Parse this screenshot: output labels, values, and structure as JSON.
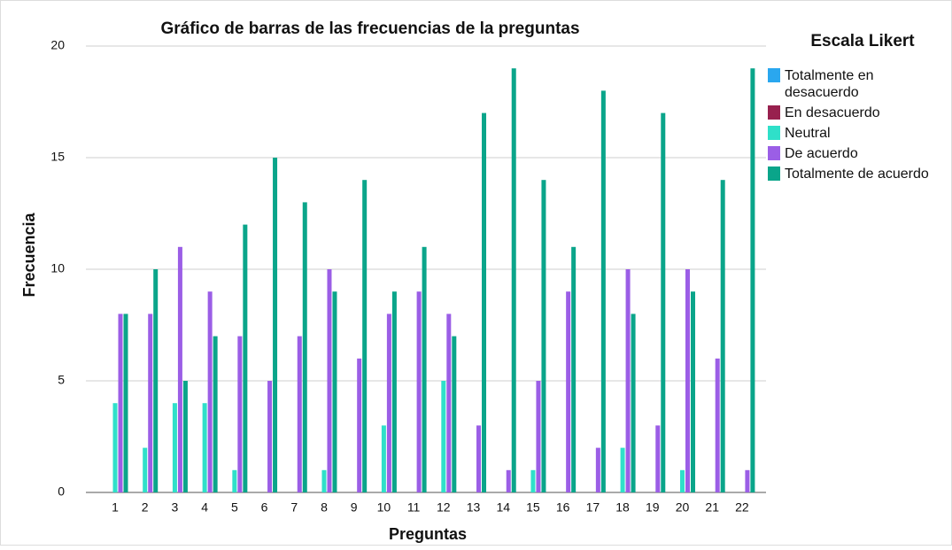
{
  "chart_data": {
    "type": "bar",
    "title": "Gráfico de barras de las frecuencias de la preguntas",
    "x_label": "Preguntas",
    "y_label": "Frecuencia",
    "legend_title": "Escala Likert",
    "legend": "right",
    "categories": [
      "1",
      "2",
      "3",
      "4",
      "5",
      "6",
      "7",
      "8",
      "9",
      "10",
      "11",
      "12",
      "13",
      "14",
      "15",
      "16",
      "17",
      "18",
      "19",
      "20",
      "21",
      "22"
    ],
    "series": [
      {
        "name": "Totalmente en desacuerdo",
        "color": "#2aa7ef",
        "values": [
          0,
          0,
          0,
          0,
          0,
          0,
          0,
          0,
          0,
          0,
          0,
          0,
          0,
          0,
          0,
          0,
          0,
          0,
          0,
          0,
          0,
          0
        ]
      },
      {
        "name": "En desacuerdo",
        "color": "#98204e",
        "values": [
          0,
          0,
          0,
          0,
          0,
          0,
          0,
          0,
          0,
          0,
          0,
          0,
          0,
          0,
          0,
          0,
          0,
          0,
          0,
          0,
          0,
          0
        ]
      },
      {
        "name": "Neutral",
        "color": "#2fe0c9",
        "values": [
          4,
          2,
          4,
          4,
          1,
          0,
          0,
          1,
          0,
          3,
          0,
          5,
          0,
          0,
          1,
          0,
          0,
          2,
          0,
          1,
          0,
          0
        ]
      },
      {
        "name": "De acuerdo",
        "color": "#9b5ee6",
        "values": [
          8,
          8,
          11,
          9,
          7,
          5,
          7,
          10,
          6,
          8,
          9,
          8,
          3,
          1,
          5,
          9,
          2,
          10,
          3,
          10,
          6,
          1
        ]
      },
      {
        "name": "Totalmente de acuerdo",
        "color": "#0aa58a",
        "values": [
          8,
          10,
          5,
          7,
          12,
          15,
          13,
          9,
          14,
          9,
          11,
          7,
          17,
          19,
          14,
          11,
          18,
          8,
          17,
          9,
          14,
          19
        ]
      }
    ],
    "ylim": [
      0,
      20
    ],
    "yticks": [
      0,
      5,
      10,
      15,
      20
    ],
    "grid": true
  }
}
